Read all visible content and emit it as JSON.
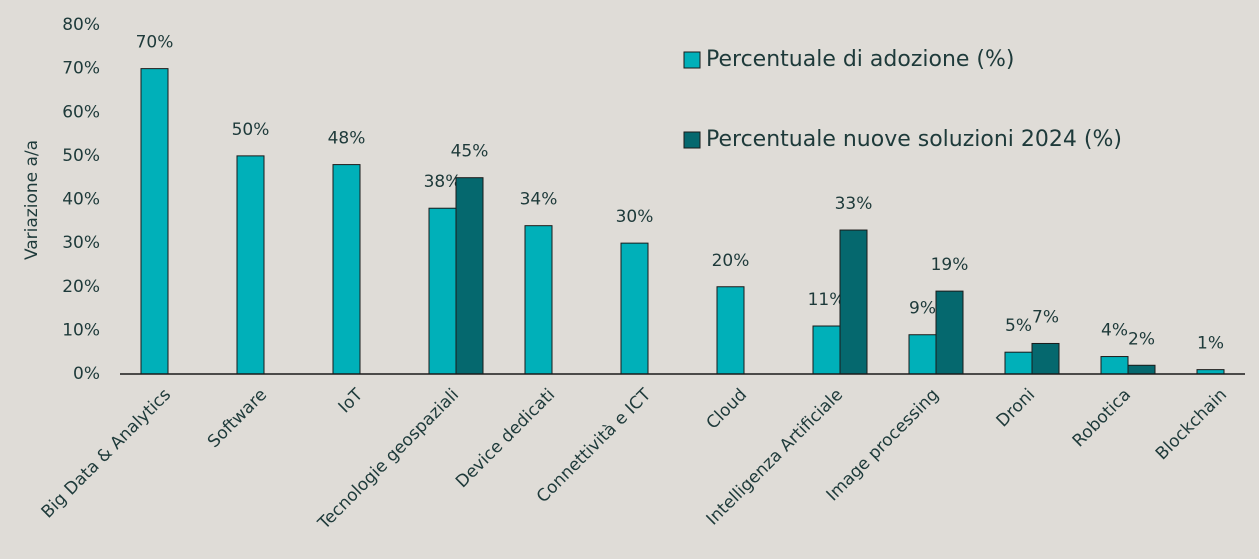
{
  "chart_data": {
    "type": "bar",
    "ylabel": "Variazione a/a",
    "categories": [
      "Big Data & Analytics",
      "Software",
      "IoT",
      "Tecnologie geospaziali",
      "Device dedicati",
      "Connettività e ICT",
      "Cloud",
      "Intelligenza Artificiale",
      "Image processing",
      "Droni",
      "Robotica",
      "Blockchain"
    ],
    "series": [
      {
        "name": "Percentuale di adozione (%)",
        "color": "#00b0b9",
        "values": [
          70,
          50,
          48,
          38,
          34,
          30,
          20,
          11,
          9,
          5,
          4,
          1
        ],
        "value_labels": [
          "70%",
          "50%",
          "48%",
          "38%",
          "34%",
          "30%",
          "20%",
          "11%",
          "9%",
          "5%",
          "4%",
          "1%"
        ]
      },
      {
        "name": "Percentuale nuove soluzioni 2024 (%)",
        "color": "#05686e",
        "values": [
          null,
          null,
          null,
          45,
          null,
          null,
          null,
          33,
          19,
          7,
          2,
          null
        ],
        "value_labels": [
          null,
          null,
          null,
          "45%",
          null,
          null,
          null,
          "33%",
          "19%",
          "7%",
          "2%",
          null
        ]
      }
    ],
    "ylim": [
      0,
      80
    ],
    "yticks": [
      {
        "value": 0,
        "label": "0%"
      },
      {
        "value": 10,
        "label": "10%"
      },
      {
        "value": 20,
        "label": "20%"
      },
      {
        "value": 30,
        "label": "30%"
      },
      {
        "value": 40,
        "label": "40%"
      },
      {
        "value": 50,
        "label": "50%"
      },
      {
        "value": 60,
        "label": "60%"
      },
      {
        "value": 70,
        "label": "70%"
      },
      {
        "value": 80,
        "label": "80%"
      }
    ],
    "grid": false,
    "legend": "top-right"
  }
}
